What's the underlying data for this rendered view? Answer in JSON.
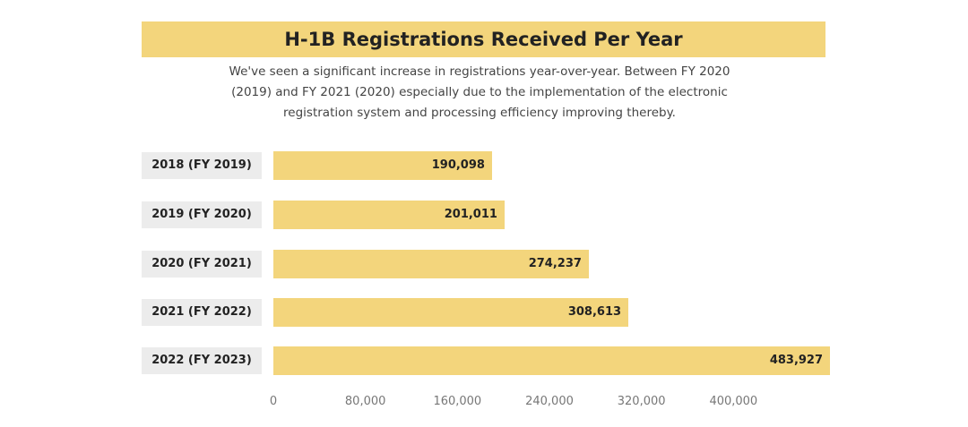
{
  "chart_data": {
    "type": "bar",
    "orientation": "horizontal",
    "title": "H-1B Registrations Received Per Year",
    "subtitle": "We've seen a significant increase in registrations year-over-year. Between FY 2020 (2019) and FY 2021 (2020) especially due to the implementation of the electronic registration system and processing efficiency improving thereby.",
    "categories": [
      "2018 (FY 2019)",
      "2019 (FY 2020)",
      "2020 (FY 2021)",
      "2021 (FY 2022)",
      "2022 (FY 2023)"
    ],
    "values": [
      190098,
      201011,
      274237,
      308613,
      483927
    ],
    "value_labels": [
      "190,098",
      "201,011",
      "274,237",
      "308,613",
      "483,927"
    ],
    "color": "#f3d57c",
    "xlim": [
      0,
      480000
    ],
    "xticks": [
      0,
      {
        "value": 80000,
        "label": "80,000"
      },
      {
        "value": 160000,
        "label": "160,000"
      },
      {
        "value": 240000,
        "label": "240,000"
      },
      {
        "value": 320000,
        "label": "320,000"
      },
      {
        "value": 400000,
        "label": "400,000"
      }
    ],
    "grid": false
  }
}
